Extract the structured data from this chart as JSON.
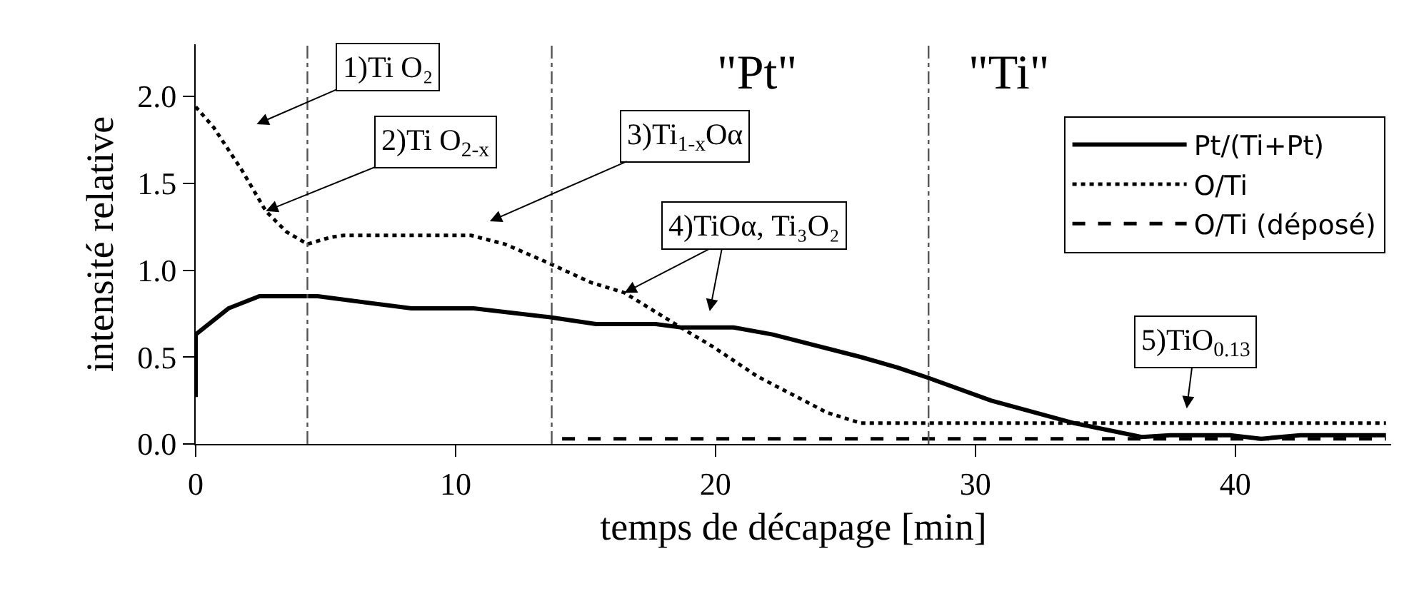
{
  "chart_data": {
    "type": "line",
    "xlabel": "temps de décapage [min]",
    "ylabel": "intensité relative",
    "xlim": [
      0,
      46
    ],
    "xticks": [
      0,
      10,
      20,
      30,
      40
    ],
    "ylim": [
      0,
      2.3
    ],
    "yticks": [
      {
        "value": 0,
        "label": "0.0"
      },
      0.5,
      {
        "value": 1,
        "label": "1.0"
      },
      1.5,
      {
        "value": 2,
        "label": "2.0"
      }
    ],
    "legend": "top right",
    "marker": "none",
    "series": [
      {
        "name": "Pt/(Ti+Pt)",
        "color": "#000000",
        "line_style": "solid",
        "x": [
          0,
          0,
          1.26,
          2.45,
          4.7,
          8.3,
          10.7,
          13.6,
          15.4,
          17.7,
          18.7,
          20.7,
          22.2,
          25.6,
          27.0,
          28.2,
          30.6,
          33.8,
          36.4,
          37.5,
          39.8,
          41.0,
          42.5,
          45.8
        ],
        "values": [
          0.27,
          0.63,
          0.78,
          0.85,
          0.85,
          0.78,
          0.78,
          0.73,
          0.69,
          0.69,
          0.67,
          0.67,
          0.63,
          0.5,
          0.44,
          0.38,
          0.25,
          0.12,
          0.04,
          0.05,
          0.05,
          0.03,
          0.05,
          0.05
        ]
      },
      {
        "name": "O/Ti",
        "color": "#000000",
        "line_style": "dotted",
        "x": [
          0,
          0.7,
          1.8,
          2.7,
          3.5,
          4.3,
          5.2,
          5.7,
          10.6,
          11.9,
          13.6,
          15.2,
          16.5,
          19.0,
          19.9,
          21.6,
          24.3,
          25.6,
          45.8
        ],
        "values": [
          1.94,
          1.82,
          1.57,
          1.34,
          1.22,
          1.15,
          1.19,
          1.2,
          1.2,
          1.15,
          1.04,
          0.93,
          0.87,
          0.64,
          0.56,
          0.39,
          0.18,
          0.12,
          0.12
        ]
      },
      {
        "name": "O/Ti (déposé)",
        "color": "#000000",
        "line_style": "dashed",
        "x": [
          14.1,
          45.8
        ],
        "values": [
          0.03,
          0.03
        ]
      }
    ],
    "ref_lines": [
      {
        "axis": "x",
        "value": 4.3,
        "color": "#555555",
        "line_style": "dashed"
      },
      {
        "axis": "x",
        "value": 13.7,
        "color": "#555555",
        "line_style": "dashed"
      },
      {
        "axis": "x",
        "value": 28.2,
        "color": "#555555",
        "line_style": "dashed"
      }
    ],
    "annotations": [
      "1)Ti O₂",
      {
        "text": "2)Ti O$_{2-x}$",
        "x": 2.7,
        "y": 1.34
      },
      "3)Ti$_{1-x}$Oα",
      {
        "text": "4)TiOα, Ti₃O₂",
        "x": 16.5,
        "y": 0.87
      },
      "5)TiO$_{0.13}$",
      "\"Pt\"",
      "\"Ti\""
    ]
  }
}
